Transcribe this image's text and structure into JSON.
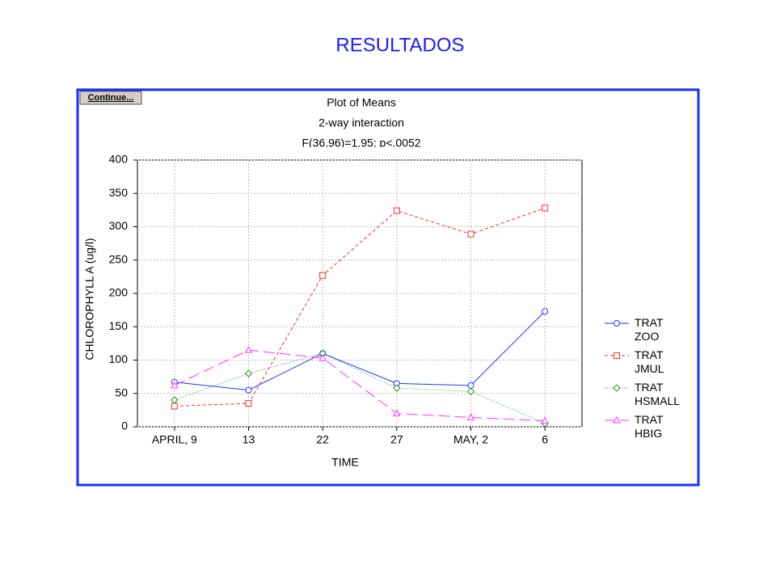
{
  "slide_title": "RESULTADOS",
  "button_label": "Continue...",
  "chart_data": {
    "type": "line",
    "title": "Plot of Means",
    "subtitle": "2-way interaction",
    "annotation": "F(36,96)=1.95; p<.0052",
    "x_label": "TIME",
    "y_label": "CHLOROPHYLL A (ug/l)",
    "categories": [
      "APRIL, 9",
      "13",
      "22",
      "27",
      "MAY, 2",
      "6"
    ],
    "ylim": [
      0,
      400
    ],
    "yticks": [
      0,
      50,
      100,
      150,
      200,
      250,
      300,
      350,
      400
    ],
    "grid": true,
    "legend": "right",
    "series": [
      {
        "name": "TRAT ZOO",
        "color": "#1f35ff",
        "dash": "none",
        "marker": "circle",
        "values": [
          67,
          55,
          110,
          65,
          62,
          173
        ]
      },
      {
        "name": "TRAT JMUL",
        "color": "#ff2a2a",
        "dash": "4,3",
        "marker": "square",
        "values": [
          31,
          35,
          227,
          324,
          289,
          328
        ]
      },
      {
        "name": "TRAT HSMALL",
        "color": "#1f9a1f",
        "dash": "1,2",
        "marker": "diamond",
        "values": [
          40,
          80,
          110,
          58,
          53,
          5
        ]
      },
      {
        "name": "TRAT HBIG",
        "color": "#ff33ff",
        "dash": "14,6",
        "marker": "triangle",
        "values": [
          62,
          115,
          103,
          20,
          14,
          9
        ]
      }
    ]
  }
}
